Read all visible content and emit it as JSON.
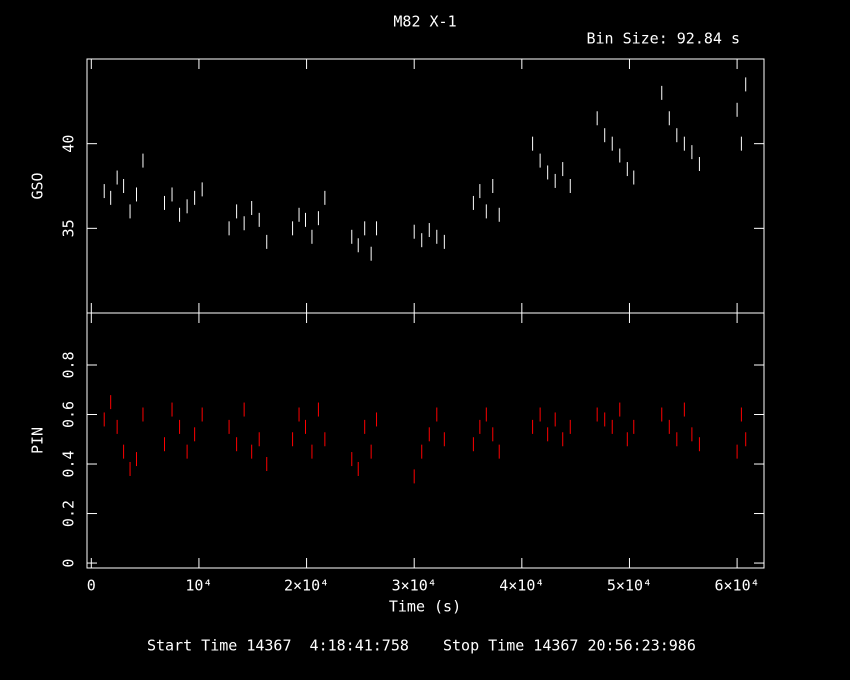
{
  "chart_data": [
    {
      "type": "scatter",
      "title": "M82 X-1",
      "subtitle": "Bin Size: 92.84 s",
      "ylabel": "GSO",
      "color": "#ffffff",
      "xlim": [
        -400,
        62500
      ],
      "ylim": [
        30,
        45
      ],
      "yticks": [
        35,
        40
      ],
      "x": [
        1200,
        1800,
        2400,
        3000,
        3600,
        4200,
        4800,
        6800,
        7500,
        8200,
        8900,
        9600,
        10300,
        12800,
        13500,
        14200,
        14900,
        15600,
        16300,
        18700,
        19300,
        19900,
        20500,
        21100,
        21700,
        24200,
        24800,
        25400,
        26000,
        26500,
        30000,
        30700,
        31400,
        32100,
        32800,
        35500,
        36100,
        36700,
        37300,
        37900,
        41000,
        41700,
        42400,
        43100,
        43800,
        44500,
        47000,
        47700,
        48400,
        49100,
        49800,
        50400,
        53000,
        53700,
        54400,
        55100,
        55800,
        56500,
        60000,
        60400,
        60800
      ],
      "values": [
        37.2,
        36.8,
        38.0,
        37.5,
        36.0,
        37.0,
        39.0,
        36.5,
        37.0,
        35.8,
        36.3,
        36.8,
        37.3,
        35.0,
        36.0,
        35.3,
        36.2,
        35.5,
        34.2,
        35.0,
        35.8,
        35.5,
        34.5,
        35.6,
        36.8,
        34.5,
        34.0,
        35.0,
        33.5,
        35.0,
        34.8,
        34.3,
        34.9,
        34.5,
        34.2,
        36.5,
        37.2,
        36.0,
        37.5,
        35.8,
        40.0,
        39.0,
        38.3,
        37.8,
        38.5,
        37.5,
        41.5,
        40.5,
        40.0,
        39.3,
        38.5,
        38.0,
        43.0,
        41.5,
        40.5,
        40.0,
        39.5,
        38.8,
        42.0,
        40.0,
        43.5
      ]
    },
    {
      "type": "scatter",
      "ylabel": "PIN",
      "xlabel": "Time (s)",
      "color": "#ff0000",
      "xlim": [
        -400,
        62500
      ],
      "ylim": [
        -0.02,
        1.01
      ],
      "yticks": [
        0,
        0.2,
        0.4,
        0.6,
        0.8
      ],
      "xticks": [
        0,
        {
          "value": 10000,
          "label": "10⁴"
        },
        {
          "value": 20000,
          "label": "2×10⁴"
        },
        {
          "value": 30000,
          "label": "3×10⁴"
        },
        {
          "value": 40000,
          "label": "4×10⁴"
        },
        {
          "value": 50000,
          "label": "5×10⁴"
        },
        {
          "value": 60000,
          "label": "6×10⁴"
        }
      ],
      "x": [
        1200,
        1800,
        2400,
        3000,
        3600,
        4200,
        4800,
        6800,
        7500,
        8200,
        8900,
        9600,
        10300,
        12800,
        13500,
        14200,
        14900,
        15600,
        16300,
        18700,
        19300,
        19900,
        20500,
        21100,
        21700,
        24200,
        24800,
        25400,
        26000,
        26500,
        30000,
        30700,
        31400,
        32100,
        32800,
        35500,
        36100,
        36700,
        37300,
        37900,
        41000,
        41700,
        42400,
        43100,
        43800,
        44500,
        47000,
        47700,
        48400,
        49100,
        49800,
        50400,
        53000,
        53700,
        54400,
        55100,
        55800,
        56500,
        60000,
        60400,
        60800
      ],
      "values": [
        0.58,
        0.65,
        0.55,
        0.45,
        0.38,
        0.42,
        0.6,
        0.48,
        0.62,
        0.55,
        0.45,
        0.52,
        0.6,
        0.55,
        0.48,
        0.62,
        0.45,
        0.5,
        0.4,
        0.5,
        0.6,
        0.55,
        0.45,
        0.62,
        0.5,
        0.42,
        0.38,
        0.55,
        0.45,
        0.58,
        0.35,
        0.45,
        0.52,
        0.6,
        0.5,
        0.48,
        0.55,
        0.6,
        0.52,
        0.45,
        0.55,
        0.6,
        0.52,
        0.58,
        0.5,
        0.55,
        0.6,
        0.58,
        0.55,
        0.62,
        0.5,
        0.55,
        0.6,
        0.55,
        0.5,
        0.62,
        0.52,
        0.48,
        0.45,
        0.6,
        0.5
      ]
    }
  ],
  "start_time": "Start Time 14367  4:18:41:758",
  "stop_time": "Stop Time 14367 20:56:23:986"
}
